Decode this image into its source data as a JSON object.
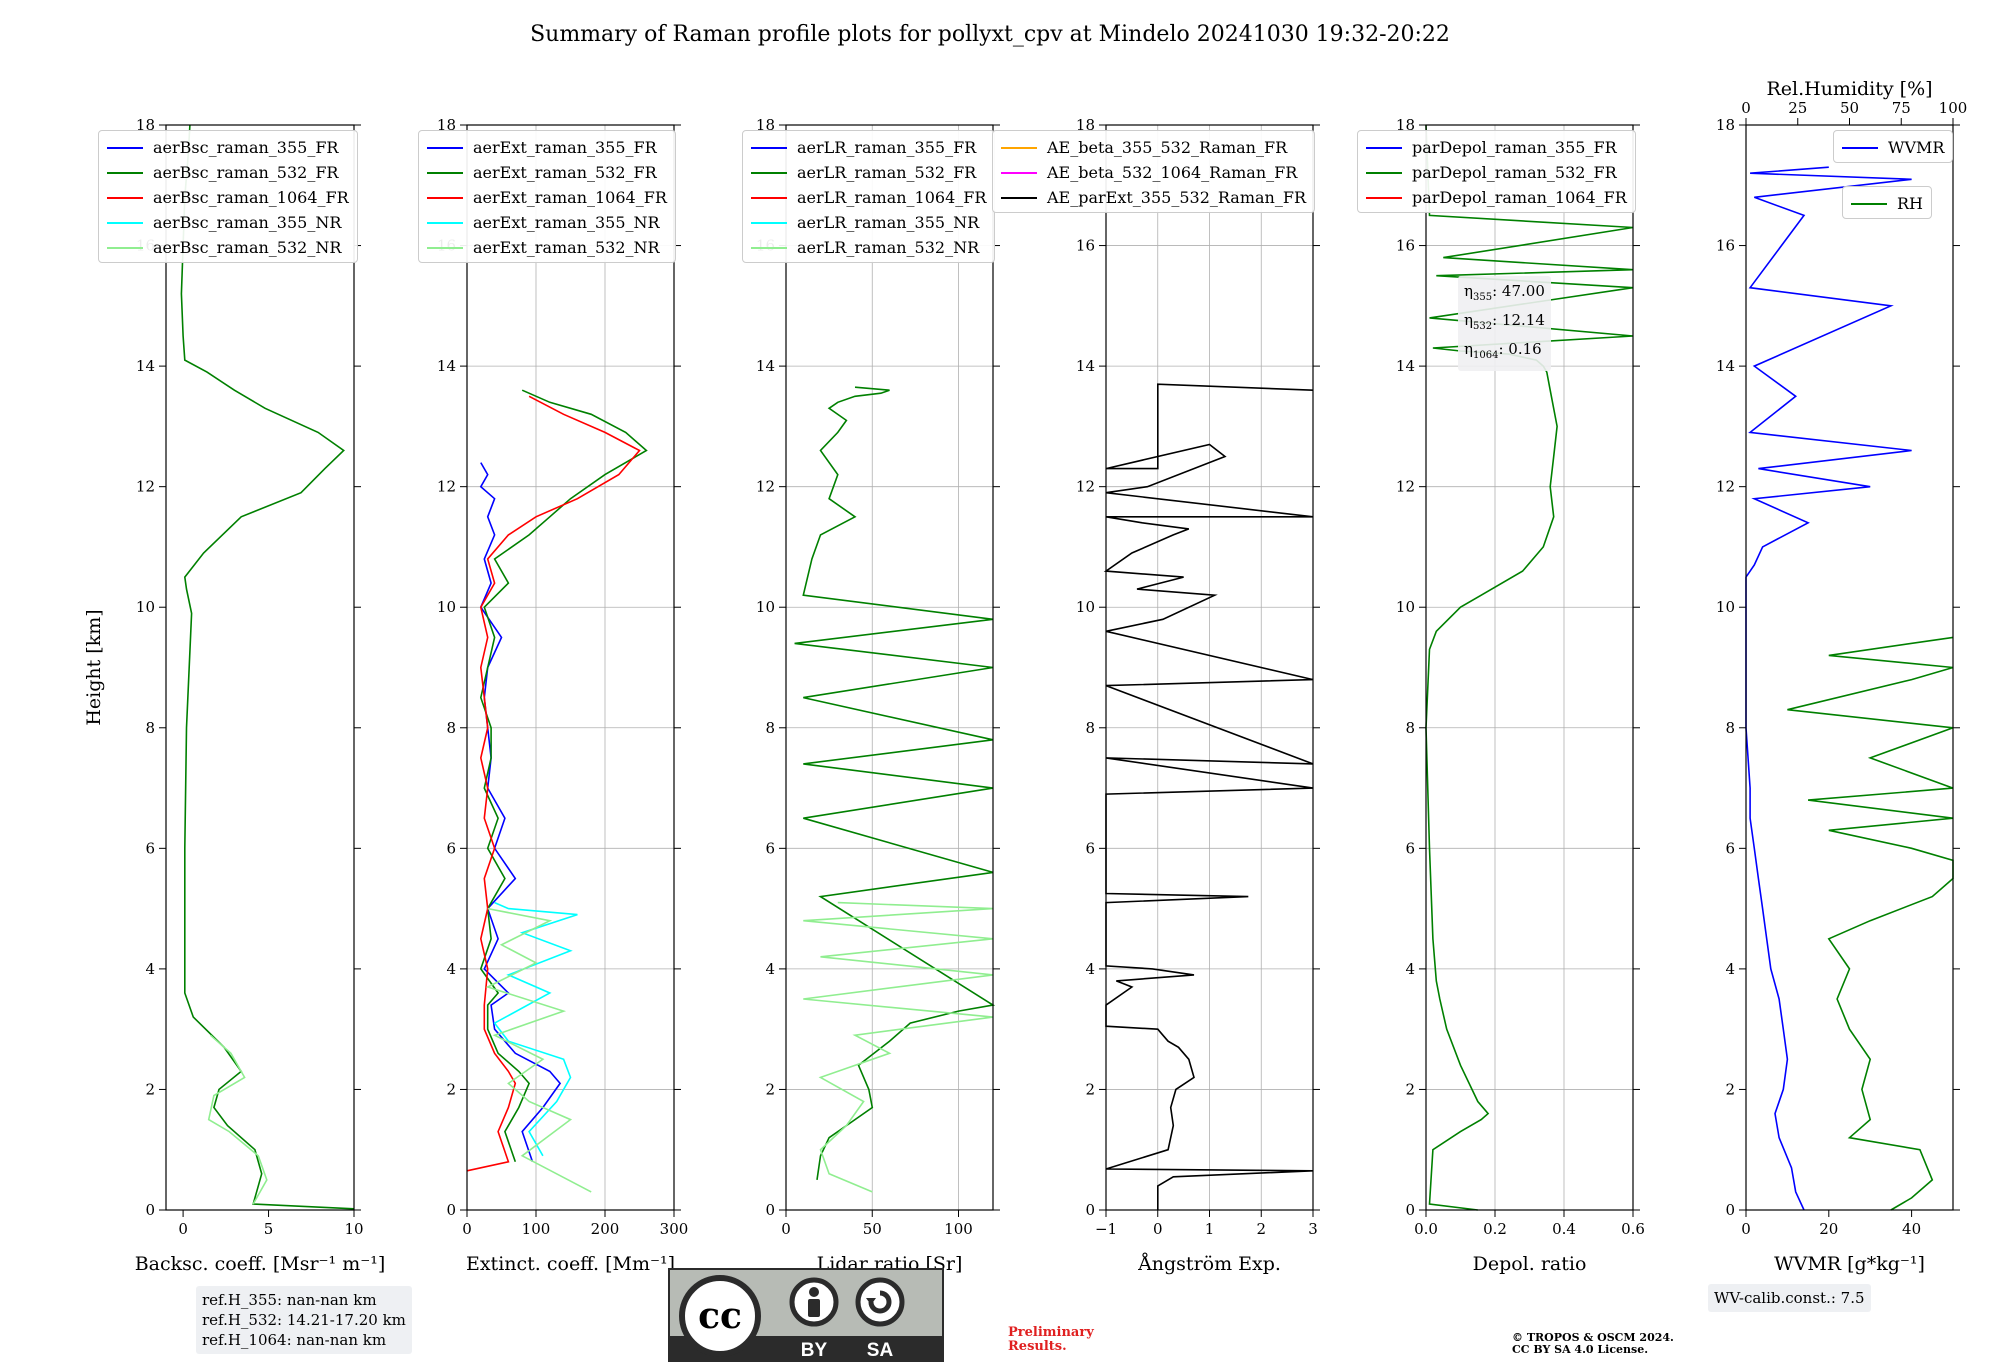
{
  "title": "Summary of Raman profile plots for pollyxt_cpv at Mindelo 20241030 19:32-20:22",
  "ylabel": "Height [km]",
  "colors": {
    "c355": "#0000ff",
    "c532": "#008000",
    "c1064": "#ff0000",
    "c355nr": "#00ffff",
    "c532nr": "#90ee90",
    "ae1": "#ffa500",
    "ae2": "#ff00ff",
    "ae3": "#000000",
    "wvmr": "#0000ff",
    "rh": "#008000"
  },
  "chart_data": [
    {
      "type": "line",
      "xlabel": "Backsc. coeff. [Msr⁻¹ m⁻¹]",
      "ylabel": "Height [km]",
      "xlim": [
        -1,
        10
      ],
      "ylim": [
        0,
        18
      ],
      "xticks": [
        "0",
        "5",
        "10"
      ],
      "yticks": [
        "0",
        "2",
        "4",
        "6",
        "8",
        "10",
        "12",
        "14",
        "16",
        "18"
      ],
      "grid": false,
      "legend": "upper-left",
      "series": [
        {
          "name": "aerBsc_raman_355_FR",
          "x": [],
          "y": []
        },
        {
          "name": "aerBsc_raman_532_FR",
          "x": [
            10,
            4.1,
            4.6,
            4.2,
            2.6,
            1.8,
            2.1,
            3.4,
            2.4,
            0.6,
            0.1,
            0.1,
            0.1,
            0.2,
            0.5,
            0.2,
            0.1,
            1.2,
            3.4,
            6.9,
            8.3,
            9.4,
            7.9,
            4.8,
            3.0,
            1.4,
            0.1,
            0.0,
            -0.1,
            0.0,
            0.1,
            0.3,
            0.4
          ],
          "y": [
            0.02,
            0.1,
            0.6,
            1.0,
            1.4,
            1.7,
            2.0,
            2.3,
            2.7,
            3.2,
            3.6,
            4.5,
            6.0,
            8.0,
            9.9,
            10.3,
            10.5,
            10.9,
            11.5,
            11.9,
            12.3,
            12.6,
            12.9,
            13.3,
            13.6,
            13.9,
            14.1,
            14.5,
            15.2,
            16.0,
            16.8,
            17.5,
            18.0
          ]
        },
        {
          "name": "aerBsc_raman_1064_FR",
          "x": [],
          "y": []
        },
        {
          "name": "aerBsc_raman_355_NR",
          "x": [],
          "y": []
        },
        {
          "name": "aerBsc_raman_532_NR",
          "x": [
            4.1,
            4.9,
            4.4,
            2.7,
            1.5,
            1.8,
            3.6,
            2.8,
            1.6
          ],
          "y": [
            0.1,
            0.5,
            0.9,
            1.3,
            1.5,
            1.9,
            2.2,
            2.6,
            2.9
          ]
        }
      ]
    },
    {
      "type": "line",
      "xlabel": "Extinct. coeff. [Mm⁻¹]",
      "ylabel": "Height [km]",
      "xlim": [
        0,
        300
      ],
      "ylim": [
        0,
        18
      ],
      "xticks": [
        "0",
        "100",
        "200",
        "300"
      ],
      "yticks": [
        "0",
        "2",
        "4",
        "6",
        "8",
        "10",
        "12",
        "14",
        "16",
        "18"
      ],
      "grid": true,
      "legend": "upper-left",
      "series": [
        {
          "name": "aerExt_raman_355_FR",
          "x": [
            95,
            80,
            110,
            135,
            120,
            70,
            40,
            35,
            60,
            25,
            45,
            30,
            70,
            40,
            55,
            30,
            35,
            30,
            25,
            30,
            50,
            20,
            35,
            25,
            40,
            30,
            40,
            20,
            30,
            20
          ],
          "y": [
            0.8,
            1.3,
            1.7,
            2.1,
            2.3,
            2.6,
            3.0,
            3.4,
            3.6,
            4.0,
            4.5,
            5.0,
            5.5,
            6.0,
            6.5,
            7.0,
            7.5,
            8.0,
            8.5,
            9.0,
            9.5,
            10.0,
            10.4,
            10.8,
            11.2,
            11.5,
            11.8,
            12.0,
            12.2,
            12.4
          ]
        },
        {
          "name": "aerExt_raman_532_FR",
          "x": [
            70,
            55,
            75,
            90,
            75,
            45,
            30,
            30,
            45,
            20,
            35,
            30,
            55,
            30,
            45,
            25,
            35,
            35,
            20,
            30,
            40,
            25,
            60,
            40,
            90,
            120,
            150,
            200,
            260,
            230,
            180,
            120,
            80
          ],
          "y": [
            0.8,
            1.3,
            1.7,
            2.1,
            2.3,
            2.6,
            3.0,
            3.4,
            3.6,
            4.0,
            4.5,
            5.0,
            5.5,
            6.0,
            6.5,
            7.0,
            7.5,
            8.0,
            8.5,
            9.0,
            9.5,
            10.0,
            10.4,
            10.8,
            11.2,
            11.5,
            11.8,
            12.2,
            12.6,
            12.9,
            13.2,
            13.4,
            13.6
          ]
        },
        {
          "name": "aerExt_raman_1064_FR",
          "x": [
            0,
            60,
            45,
            60,
            70,
            60,
            40,
            25,
            25,
            30,
            20,
            30,
            25,
            40,
            25,
            30,
            20,
            30,
            25,
            20,
            30,
            20,
            40,
            30,
            60,
            100,
            160,
            220,
            250,
            200,
            140,
            90
          ],
          "y": [
            0.65,
            0.8,
            1.3,
            1.7,
            2.1,
            2.3,
            2.6,
            3.0,
            3.4,
            4.0,
            4.5,
            5.0,
            5.5,
            6.0,
            6.5,
            7.0,
            7.5,
            8.0,
            8.5,
            9.0,
            9.5,
            10.0,
            10.4,
            10.8,
            11.2,
            11.5,
            11.8,
            12.2,
            12.6,
            12.9,
            13.2,
            13.5
          ]
        },
        {
          "name": "aerExt_raman_355_NR",
          "x": [
            110,
            90,
            130,
            150,
            140,
            60,
            40,
            120,
            60,
            150,
            80,
            160,
            60,
            40
          ],
          "y": [
            0.9,
            1.3,
            1.8,
            2.2,
            2.5,
            2.8,
            3.1,
            3.6,
            3.9,
            4.3,
            4.6,
            4.9,
            5.0,
            5.1
          ]
        },
        {
          "name": "aerExt_raman_532_NR",
          "x": [
            180,
            80,
            150,
            90,
            60,
            110,
            40,
            140,
            30,
            100,
            50,
            120,
            30
          ],
          "y": [
            0.3,
            0.9,
            1.5,
            1.8,
            2.1,
            2.5,
            2.9,
            3.3,
            3.7,
            4.1,
            4.4,
            4.8,
            5.0
          ]
        }
      ]
    },
    {
      "type": "line",
      "xlabel": "Lidar ratio [Sr]",
      "ylabel": "Height [km]",
      "xlim": [
        0,
        120
      ],
      "ylim": [
        0,
        18
      ],
      "xticks": [
        "0",
        "50",
        "100"
      ],
      "yticks": [
        "0",
        "2",
        "4",
        "6",
        "8",
        "10",
        "12",
        "14",
        "16",
        "18"
      ],
      "grid": true,
      "legend": "upper-left",
      "series": [
        {
          "name": "aerLR_raman_355_FR",
          "x": [],
          "y": []
        },
        {
          "name": "aerLR_raman_532_FR",
          "x": [
            18,
            20,
            25,
            35,
            50,
            48,
            42,
            60,
            72,
            100,
            120,
            20,
            120,
            10,
            120,
            10,
            120,
            10,
            120,
            5,
            120,
            10,
            15,
            20,
            40,
            25,
            30,
            20,
            30,
            35,
            25,
            30,
            40,
            55,
            60,
            40
          ],
          "y": [
            0.5,
            0.9,
            1.2,
            1.4,
            1.7,
            2.0,
            2.4,
            2.8,
            3.1,
            3.3,
            3.4,
            5.2,
            5.6,
            6.5,
            7.0,
            7.4,
            7.8,
            8.5,
            9.0,
            9.4,
            9.8,
            10.2,
            10.8,
            11.2,
            11.5,
            11.8,
            12.2,
            12.6,
            12.9,
            13.1,
            13.3,
            13.4,
            13.5,
            13.55,
            13.6,
            13.65
          ]
        },
        {
          "name": "aerLR_raman_1064_FR",
          "x": [],
          "y": []
        },
        {
          "name": "aerLR_raman_355_NR",
          "x": [],
          "y": []
        },
        {
          "name": "aerLR_raman_532_NR",
          "x": [
            50,
            25,
            20,
            35,
            45,
            20,
            60,
            40,
            120,
            10,
            120,
            20,
            120,
            10,
            120,
            30
          ],
          "y": [
            0.3,
            0.6,
            1.0,
            1.4,
            1.8,
            2.2,
            2.6,
            2.9,
            3.2,
            3.5,
            3.9,
            4.2,
            4.5,
            4.8,
            5.0,
            5.1
          ]
        }
      ]
    },
    {
      "type": "line",
      "xlabel": "Ångström Exp.",
      "ylabel": "Height [km]",
      "xlim": [
        -1,
        3
      ],
      "ylim": [
        0,
        18
      ],
      "xticks": [
        "−1",
        "0",
        "1",
        "2",
        "3"
      ],
      "yticks": [
        "0",
        "2",
        "4",
        "6",
        "8",
        "10",
        "12",
        "14",
        "16",
        "18"
      ],
      "grid": true,
      "legend": "upper-left",
      "series": [
        {
          "name": "AE_beta_355_532_Raman_FR",
          "x": [],
          "y": []
        },
        {
          "name": "AE_beta_532_1064_Raman_FR",
          "x": [],
          "y": []
        },
        {
          "name": "AE_parExt_355_532_Raman_FR",
          "x": [
            0.0,
            0.0,
            0.3,
            3.0,
            -1.0,
            0.2,
            0.3,
            0.25,
            0.35,
            0.7,
            0.6,
            0.4,
            0.2,
            0.1,
            0.0,
            -1.0,
            -1.0,
            -0.5,
            -0.8,
            0.7,
            -0.1,
            -1.0,
            -1.0,
            1.75,
            -1.0,
            -1.0,
            3.0,
            -1.0,
            3.0,
            -1.0,
            3.0,
            -1.0,
            0.1,
            1.1,
            -0.4,
            0.5,
            -1.0,
            -0.5,
            0.3,
            0.6,
            -0.3,
            -1.0,
            3.0,
            -1.0,
            -0.2,
            1.3,
            1.0,
            -1.0,
            0.0,
            0.0,
            3.0
          ],
          "y": [
            0.0,
            0.4,
            0.55,
            0.65,
            0.68,
            1.0,
            1.4,
            1.7,
            2.0,
            2.2,
            2.5,
            2.7,
            2.8,
            2.9,
            3.0,
            3.05,
            3.4,
            3.7,
            3.8,
            3.9,
            4.0,
            4.05,
            5.1,
            5.2,
            5.25,
            6.9,
            7.0,
            7.5,
            7.4,
            8.7,
            8.8,
            9.6,
            9.8,
            10.2,
            10.3,
            10.5,
            10.6,
            10.9,
            11.2,
            11.3,
            11.4,
            11.5,
            11.5,
            11.9,
            12.0,
            12.5,
            12.7,
            12.3,
            12.3,
            13.7,
            13.6
          ]
        }
      ]
    },
    {
      "type": "line",
      "xlabel": "Depol. ratio",
      "ylabel": "Height [km]",
      "xlim": [
        0,
        0.6
      ],
      "ylim": [
        0,
        18
      ],
      "xticks": [
        "0.0",
        "0.2",
        "0.4",
        "0.6"
      ],
      "yticks": [
        "0",
        "2",
        "4",
        "6",
        "8",
        "10",
        "12",
        "14",
        "16",
        "18"
      ],
      "grid": true,
      "legend": "upper-left",
      "annotation": {
        "eta355": "47.00",
        "eta532": "12.14",
        "eta1064": "0.16"
      },
      "series": [
        {
          "name": "parDepol_raman_355_FR",
          "x": [],
          "y": []
        },
        {
          "name": "parDepol_raman_532_FR",
          "x": [
            0.15,
            0.01,
            0.02,
            0.1,
            0.16,
            0.18,
            0.15,
            0.1,
            0.06,
            0.04,
            0.03,
            0.02,
            0.01,
            0.0,
            0.01,
            0.03,
            0.1,
            0.16,
            0.28,
            0.34,
            0.37,
            0.36,
            0.37,
            0.38,
            0.36,
            0.35,
            0.34,
            0.32,
            0.24,
            0.1,
            0.02,
            0.6,
            0.01,
            0.6,
            0.03,
            0.6,
            0.05,
            0.6,
            0.01,
            0.0
          ],
          "y": [
            0.0,
            0.1,
            1.0,
            1.3,
            1.5,
            1.6,
            1.8,
            2.4,
            3.0,
            3.5,
            3.8,
            4.5,
            6.0,
            8.0,
            9.3,
            9.6,
            10.0,
            10.2,
            10.6,
            11.0,
            11.5,
            12.0,
            12.5,
            13.0,
            13.6,
            13.9,
            14.0,
            14.1,
            14.2,
            14.25,
            14.3,
            14.5,
            14.8,
            15.3,
            15.5,
            15.6,
            15.8,
            16.3,
            16.5,
            18.0
          ]
        },
        {
          "name": "parDepol_raman_1064_FR",
          "x": [],
          "y": []
        }
      ]
    },
    {
      "type": "line",
      "xlabel": "WVMR [g*kg⁻¹]",
      "ylabel": "Height [km]",
      "xlim": [
        0,
        50
      ],
      "ylim": [
        0,
        18
      ],
      "x2label": "Rel.Humidity [%]",
      "x2lim": [
        0,
        100
      ],
      "x2ticks": [
        "0",
        "25",
        "50",
        "75",
        "100"
      ],
      "xticks": [
        "0",
        "20",
        "40"
      ],
      "yticks": [
        "0",
        "2",
        "4",
        "6",
        "8",
        "10",
        "12",
        "14",
        "16",
        "18"
      ],
      "grid": false,
      "legend": "upper-right",
      "series": [
        {
          "name": "WVMR",
          "x": [
            14,
            12,
            11,
            8,
            7,
            9,
            10,
            9,
            8,
            6,
            5,
            4,
            3,
            2,
            1,
            1,
            0,
            0,
            0,
            0,
            2,
            4,
            15,
            2,
            30,
            3,
            40,
            1,
            12,
            2,
            35,
            1,
            14,
            2,
            40,
            1,
            20
          ],
          "y": [
            0.0,
            0.3,
            0.7,
            1.2,
            1.6,
            2.0,
            2.5,
            3.0,
            3.5,
            4.0,
            4.5,
            5.0,
            5.5,
            6.0,
            6.5,
            7.0,
            8.0,
            9.0,
            10.0,
            10.5,
            10.7,
            11.0,
            11.4,
            11.8,
            12.0,
            12.3,
            12.6,
            12.9,
            13.5,
            14.0,
            15.0,
            15.3,
            16.5,
            16.8,
            17.1,
            17.2,
            17.3
          ]
        },
        {
          "name": "RH",
          "x": [
            35,
            40,
            45,
            42,
            25,
            30,
            28,
            30,
            25,
            22,
            25,
            20,
            30,
            45,
            60,
            75,
            40,
            20,
            60,
            15,
            80,
            30,
            100,
            10,
            40,
            70,
            20,
            90
          ],
          "y": [
            0.0,
            0.2,
            0.5,
            1.0,
            1.2,
            1.5,
            2.0,
            2.5,
            3.0,
            3.5,
            4.0,
            4.5,
            4.8,
            5.2,
            5.5,
            5.8,
            6.0,
            6.3,
            6.5,
            6.8,
            7.0,
            7.5,
            8.0,
            8.3,
            8.8,
            9.0,
            9.2,
            9.5
          ]
        }
      ]
    }
  ],
  "legend5_extra": "",
  "refbox": {
    "l1": "ref.H_355: nan-nan km",
    "l2": "ref.H_532: 14.21-17.20 km",
    "l3": "ref.H_1064: nan-nan km"
  },
  "wvcalib": "WV-calib.const.: 7.5",
  "prelim": {
    "l1": "Preliminary",
    "l2": "Results."
  },
  "copyright": {
    "l1": "© TROPOS & OSCM 2024.",
    "l2": "CC BY SA 4.0 License."
  },
  "cc": {
    "by": "BY",
    "sa": "SA",
    "cc": "cc"
  }
}
